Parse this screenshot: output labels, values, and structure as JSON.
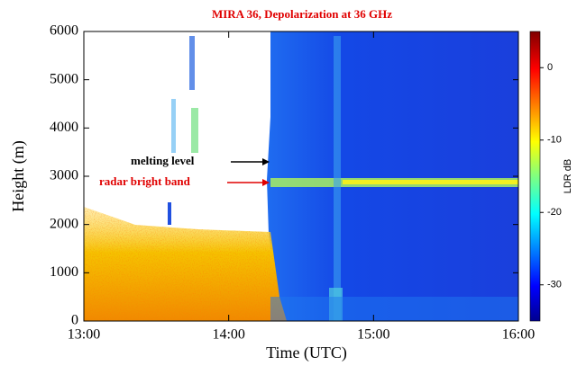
{
  "chart_data": {
    "type": "heatmap",
    "title": "MIRA 36, Depolarization at 36 GHz",
    "title_color": "#e00000",
    "xlabel": "Time (UTC)",
    "ylabel": "Height (m)",
    "xlim": [
      13,
      16
    ],
    "xticks": [
      {
        "value": 13,
        "label": "13:00"
      },
      {
        "value": 14,
        "label": "14:00"
      },
      {
        "value": 15,
        "label": "15:00"
      },
      {
        "value": 16,
        "label": "16:00"
      }
    ],
    "ylim": [
      0,
      6000
    ],
    "yticks": [
      0,
      1000,
      2000,
      3000,
      4000,
      5000,
      6000
    ],
    "colorbar": {
      "label": "LDR dB",
      "lim": [
        -35,
        5
      ],
      "ticks": [
        0,
        -10,
        -20,
        -30
      ]
    },
    "annotations": [
      {
        "text": "melting level",
        "color": "#000000"
      },
      {
        "text": "radar bright band",
        "color": "#e00000"
      }
    ]
  }
}
